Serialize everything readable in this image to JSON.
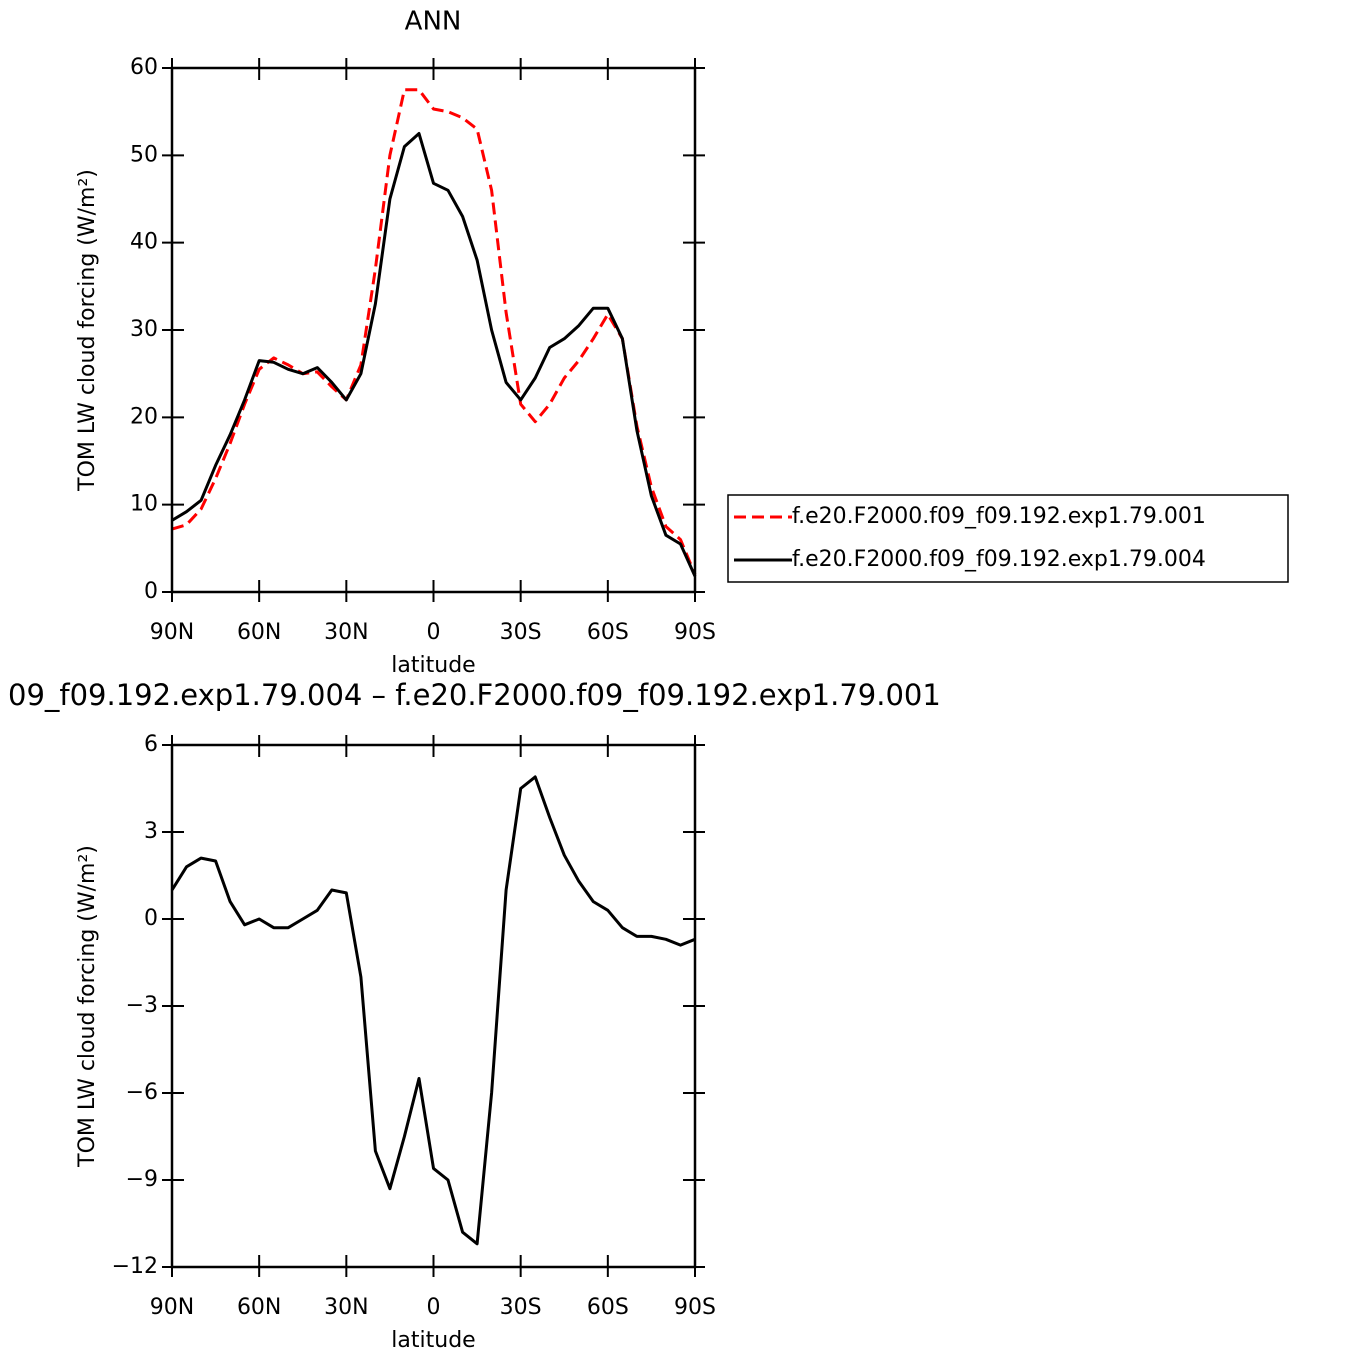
{
  "chart_data": [
    {
      "type": "line",
      "title": "ANN",
      "xlabel": "latitude",
      "ylabel": "TOM LW cloud forcing (W/m²)",
      "x": [
        90,
        85,
        80,
        75,
        70,
        65,
        60,
        55,
        50,
        45,
        40,
        35,
        30,
        25,
        20,
        15,
        10,
        5,
        0,
        -5,
        -10,
        -15,
        -20,
        -25,
        -30,
        -35,
        -40,
        -45,
        -50,
        -55,
        -60,
        -65,
        -70,
        -75,
        -80,
        -85,
        -90
      ],
      "series": [
        {
          "name": "f.e20.F2000.f09_f09.192.exp1.79.001",
          "color": "#ff0000",
          "dash": true,
          "values": [
            7.2,
            7.7,
            9.5,
            13,
            17,
            21.5,
            25.5,
            26.8,
            26,
            25,
            25.2,
            23.5,
            22,
            26,
            37,
            50,
            57.5,
            57.5,
            55.3,
            55,
            54.3,
            53,
            46,
            32,
            21.5,
            19.5,
            21.5,
            24.5,
            26.5,
            29,
            31.8,
            29,
            19,
            12,
            7.5,
            6,
            2
          ]
        },
        {
          "name": "f.e20.F2000.f09_f09.192.exp1.79.004",
          "color": "#000000",
          "dash": false,
          "values": [
            8.2,
            9.2,
            10.5,
            14.5,
            18,
            22,
            26.5,
            26.3,
            25.5,
            25,
            25.7,
            24,
            22,
            25,
            33,
            45,
            51,
            52.5,
            46.8,
            46,
            43,
            38,
            30,
            24,
            22,
            24.5,
            28,
            29,
            30.5,
            32.5,
            32.5,
            29,
            18.5,
            11,
            6.5,
            5.5,
            1.8
          ]
        }
      ],
      "xlim": [
        90,
        -90
      ],
      "xticks": [
        {
          "value": 90,
          "label": "90N"
        },
        {
          "value": 60,
          "label": "60N"
        },
        {
          "value": 30,
          "label": "30N"
        },
        0,
        {
          "value": -30,
          "label": "30S"
        },
        {
          "value": -60,
          "label": "60S"
        },
        {
          "value": -90,
          "label": "90S"
        }
      ],
      "ylim": [
        0,
        60
      ],
      "yticks": [
        0,
        10,
        20,
        30,
        40,
        50,
        60
      ],
      "legend": "right"
    },
    {
      "type": "line",
      "title": "09_f09.192.exp1.79.004 – f.e20.F2000.f09_f09.192.exp1.79.001",
      "xlabel": "latitude",
      "ylabel": "TOM LW cloud forcing (W/m²)",
      "x": [
        90,
        85,
        80,
        75,
        70,
        65,
        60,
        55,
        50,
        45,
        40,
        35,
        30,
        25,
        20,
        15,
        10,
        5,
        0,
        -5,
        -10,
        -15,
        -20,
        -25,
        -30,
        -35,
        -40,
        -45,
        -50,
        -55,
        -60,
        -65,
        -70,
        -75,
        -80,
        -85,
        -90
      ],
      "series": [
        {
          "color": "#000000",
          "dash": false,
          "values": [
            1,
            1.8,
            2.1,
            2,
            0.6,
            -0.2,
            0,
            -0.3,
            -0.3,
            0,
            0.3,
            1,
            0.9,
            -2,
            -8,
            -9.3,
            -7.5,
            -5.5,
            -8.6,
            -9,
            -10.8,
            -11.2,
            -6,
            1,
            4.5,
            4.9,
            3.5,
            2.2,
            1.3,
            0.6,
            0.3,
            -0.3,
            -0.6,
            -0.6,
            -0.7,
            -0.9,
            -0.7
          ]
        }
      ],
      "xlim": [
        90,
        -90
      ],
      "xticks": [
        {
          "value": 90,
          "label": "90N"
        },
        {
          "value": 60,
          "label": "60N"
        },
        {
          "value": 30,
          "label": "30N"
        },
        0,
        {
          "value": -30,
          "label": "30S"
        },
        {
          "value": -60,
          "label": "60S"
        },
        {
          "value": -90,
          "label": "90S"
        }
      ],
      "ylim": [
        -12,
        6
      ],
      "yticks": [
        {
          "value": -12,
          "label": "−12"
        },
        {
          "value": -9,
          "label": "−9"
        },
        {
          "value": -6,
          "label": "−6"
        },
        {
          "value": -3,
          "label": "−3"
        },
        0,
        3,
        6
      ]
    }
  ]
}
